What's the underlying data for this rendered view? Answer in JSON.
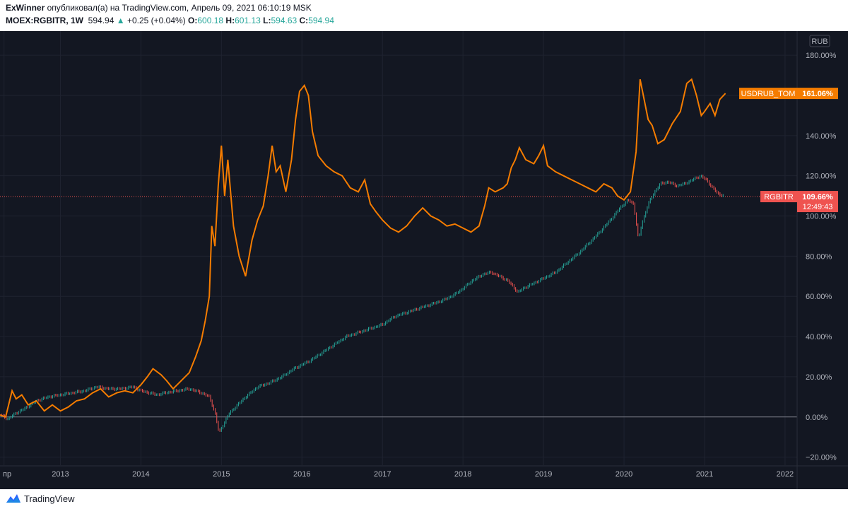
{
  "header": {
    "author": "ExWinner",
    "published_text": "опубликовал(а) на TradingView.com, Апрель 09, 2021 06:10:19 MSK",
    "symbol": "MOEX:RGBITR, 1W",
    "price": "594.94",
    "change_arrow": "▲",
    "change": "+0.25 (+0.04%)",
    "o_label": "O:",
    "o_value": "600.18",
    "h_label": "H:",
    "h_value": "601.13",
    "l_label": "L:",
    "l_value": "594.63",
    "c_label": "C:",
    "c_value": "594.94"
  },
  "footer": {
    "brand": "TradingView",
    "logo_icon": "tradingview-logo-icon"
  },
  "chart_data": {
    "type": "line",
    "currency_label": "RUB",
    "x_ticks": [
      {
        "label": "пр",
        "x": 2012.3
      },
      {
        "label": "2013",
        "x": 2013.0
      },
      {
        "label": "2014",
        "x": 2014.0
      },
      {
        "label": "2015",
        "x": 2015.0
      },
      {
        "label": "2016",
        "x": 2016.0
      },
      {
        "label": "2017",
        "x": 2017.0
      },
      {
        "label": "2018",
        "x": 2018.0
      },
      {
        "label": "2019",
        "x": 2019.0
      },
      {
        "label": "2020",
        "x": 2020.0
      },
      {
        "label": "2021",
        "x": 2021.0
      },
      {
        "label": "2022",
        "x": 2022.0
      }
    ],
    "xlim": [
      2012.25,
      2022.15
    ],
    "y_ticks": [
      "180.00%",
      "160.00%",
      "140.00%",
      "120.00%",
      "100.00%",
      "80.00%",
      "60.00%",
      "40.00%",
      "20.00%",
      "0.00%",
      "−20.00%"
    ],
    "y_tick_values": [
      180,
      160,
      140,
      120,
      100,
      80,
      60,
      40,
      20,
      0,
      -20
    ],
    "ylim": [
      -24,
      192
    ],
    "colors": {
      "usd": "#f57c00",
      "rgb_up": "#26a69a",
      "rgb_down": "#ef5350",
      "price_line": "#ef5350",
      "zero_line": "#787b86"
    },
    "series": [
      {
        "name": "USDRUB_TOM",
        "last_label": "161.06%",
        "points": [
          [
            2012.25,
            1
          ],
          [
            2012.32,
            0
          ],
          [
            2012.4,
            13
          ],
          [
            2012.45,
            9
          ],
          [
            2012.52,
            11
          ],
          [
            2012.6,
            6
          ],
          [
            2012.7,
            8
          ],
          [
            2012.8,
            3
          ],
          [
            2012.9,
            6
          ],
          [
            2013.0,
            3
          ],
          [
            2013.1,
            5
          ],
          [
            2013.2,
            8
          ],
          [
            2013.3,
            9
          ],
          [
            2013.4,
            12
          ],
          [
            2013.5,
            14
          ],
          [
            2013.6,
            10
          ],
          [
            2013.7,
            12
          ],
          [
            2013.8,
            13
          ],
          [
            2013.9,
            12
          ],
          [
            2014.0,
            16
          ],
          [
            2014.08,
            20
          ],
          [
            2014.15,
            24
          ],
          [
            2014.25,
            21
          ],
          [
            2014.32,
            18
          ],
          [
            2014.4,
            14
          ],
          [
            2014.5,
            18
          ],
          [
            2014.6,
            22
          ],
          [
            2014.68,
            30
          ],
          [
            2014.75,
            38
          ],
          [
            2014.8,
            48
          ],
          [
            2014.85,
            60
          ],
          [
            2014.88,
            95
          ],
          [
            2014.92,
            85
          ],
          [
            2014.96,
            115
          ],
          [
            2015.0,
            135
          ],
          [
            2015.04,
            110
          ],
          [
            2015.08,
            128
          ],
          [
            2015.15,
            95
          ],
          [
            2015.22,
            80
          ],
          [
            2015.3,
            70
          ],
          [
            2015.38,
            88
          ],
          [
            2015.45,
            98
          ],
          [
            2015.52,
            105
          ],
          [
            2015.58,
            120
          ],
          [
            2015.63,
            135
          ],
          [
            2015.68,
            122
          ],
          [
            2015.73,
            125
          ],
          [
            2015.8,
            112
          ],
          [
            2015.87,
            128
          ],
          [
            2015.92,
            148
          ],
          [
            2015.97,
            162
          ],
          [
            2016.03,
            165
          ],
          [
            2016.08,
            160
          ],
          [
            2016.13,
            142
          ],
          [
            2016.2,
            130
          ],
          [
            2016.3,
            125
          ],
          [
            2016.4,
            122
          ],
          [
            2016.5,
            120
          ],
          [
            2016.6,
            114
          ],
          [
            2016.7,
            112
          ],
          [
            2016.78,
            118
          ],
          [
            2016.85,
            106
          ],
          [
            2016.92,
            102
          ],
          [
            2017.0,
            98
          ],
          [
            2017.1,
            94
          ],
          [
            2017.2,
            92
          ],
          [
            2017.3,
            95
          ],
          [
            2017.4,
            100
          ],
          [
            2017.5,
            104
          ],
          [
            2017.6,
            100
          ],
          [
            2017.7,
            98
          ],
          [
            2017.8,
            95
          ],
          [
            2017.9,
            96
          ],
          [
            2018.0,
            94
          ],
          [
            2018.1,
            92
          ],
          [
            2018.2,
            95
          ],
          [
            2018.27,
            105
          ],
          [
            2018.32,
            114
          ],
          [
            2018.4,
            112
          ],
          [
            2018.5,
            114
          ],
          [
            2018.55,
            116
          ],
          [
            2018.6,
            124
          ],
          [
            2018.65,
            128
          ],
          [
            2018.7,
            134
          ],
          [
            2018.78,
            128
          ],
          [
            2018.88,
            126
          ],
          [
            2018.94,
            130
          ],
          [
            2019.0,
            135
          ],
          [
            2019.05,
            125
          ],
          [
            2019.15,
            122
          ],
          [
            2019.25,
            120
          ],
          [
            2019.35,
            118
          ],
          [
            2019.45,
            116
          ],
          [
            2019.55,
            114
          ],
          [
            2019.65,
            112
          ],
          [
            2019.75,
            116
          ],
          [
            2019.85,
            114
          ],
          [
            2019.92,
            110
          ],
          [
            2020.0,
            108
          ],
          [
            2020.08,
            112
          ],
          [
            2020.15,
            132
          ],
          [
            2020.2,
            168
          ],
          [
            2020.25,
            158
          ],
          [
            2020.3,
            148
          ],
          [
            2020.35,
            145
          ],
          [
            2020.42,
            136
          ],
          [
            2020.5,
            138
          ],
          [
            2020.6,
            146
          ],
          [
            2020.7,
            152
          ],
          [
            2020.78,
            166
          ],
          [
            2020.84,
            168
          ],
          [
            2020.9,
            160
          ],
          [
            2020.96,
            150
          ],
          [
            2021.0,
            152
          ],
          [
            2021.07,
            156
          ],
          [
            2021.13,
            150
          ],
          [
            2021.19,
            158
          ],
          [
            2021.26,
            161
          ]
        ]
      },
      {
        "name": "RGBITR",
        "last_label": "109.66%",
        "countdown": "12:49:43",
        "last_value": 109.66,
        "points": [
          [
            2012.25,
            1
          ],
          [
            2012.35,
            -1
          ],
          [
            2012.45,
            2
          ],
          [
            2012.55,
            4
          ],
          [
            2012.7,
            8
          ],
          [
            2012.85,
            10
          ],
          [
            2013.0,
            11
          ],
          [
            2013.15,
            12
          ],
          [
            2013.3,
            13
          ],
          [
            2013.45,
            15
          ],
          [
            2013.6,
            14
          ],
          [
            2013.75,
            14
          ],
          [
            2013.9,
            15
          ],
          [
            2014.0,
            13
          ],
          [
            2014.1,
            12
          ],
          [
            2014.2,
            11
          ],
          [
            2014.3,
            12
          ],
          [
            2014.45,
            13
          ],
          [
            2014.6,
            14
          ],
          [
            2014.75,
            12
          ],
          [
            2014.85,
            10
          ],
          [
            2014.92,
            2
          ],
          [
            2014.97,
            -8
          ],
          [
            2015.02,
            -4
          ],
          [
            2015.1,
            2
          ],
          [
            2015.2,
            6
          ],
          [
            2015.3,
            10
          ],
          [
            2015.45,
            15
          ],
          [
            2015.6,
            17
          ],
          [
            2015.75,
            20
          ],
          [
            2015.9,
            24
          ],
          [
            2016.0,
            26
          ],
          [
            2016.1,
            28
          ],
          [
            2016.25,
            32
          ],
          [
            2016.4,
            36
          ],
          [
            2016.55,
            40
          ],
          [
            2016.7,
            42
          ],
          [
            2016.85,
            44
          ],
          [
            2017.0,
            46
          ],
          [
            2017.15,
            50
          ],
          [
            2017.3,
            52
          ],
          [
            2017.45,
            54
          ],
          [
            2017.6,
            56
          ],
          [
            2017.75,
            58
          ],
          [
            2017.9,
            61
          ],
          [
            2018.0,
            64
          ],
          [
            2018.12,
            68
          ],
          [
            2018.25,
            71
          ],
          [
            2018.35,
            72
          ],
          [
            2018.45,
            70
          ],
          [
            2018.55,
            68
          ],
          [
            2018.62,
            65
          ],
          [
            2018.68,
            62
          ],
          [
            2018.75,
            64
          ],
          [
            2018.85,
            66
          ],
          [
            2019.0,
            69
          ],
          [
            2019.15,
            72
          ],
          [
            2019.3,
            77
          ],
          [
            2019.45,
            82
          ],
          [
            2019.6,
            88
          ],
          [
            2019.72,
            93
          ],
          [
            2019.85,
            99
          ],
          [
            2019.95,
            104
          ],
          [
            2020.05,
            108
          ],
          [
            2020.12,
            106
          ],
          [
            2020.18,
            88
          ],
          [
            2020.22,
            96
          ],
          [
            2020.3,
            106
          ],
          [
            2020.38,
            112
          ],
          [
            2020.45,
            116
          ],
          [
            2020.55,
            117
          ],
          [
            2020.65,
            115
          ],
          [
            2020.75,
            116
          ],
          [
            2020.85,
            118
          ],
          [
            2020.95,
            120
          ],
          [
            2021.02,
            118
          ],
          [
            2021.1,
            114
          ],
          [
            2021.17,
            111
          ],
          [
            2021.24,
            110
          ]
        ]
      }
    ]
  }
}
